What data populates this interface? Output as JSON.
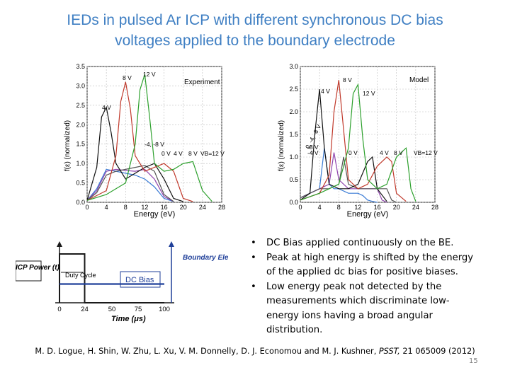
{
  "slide": {
    "title_line1": "IEDs in pulsed Ar ICP with different synchronous DC bias",
    "title_line2": "voltages applied to the boundary electrode",
    "bullets": [
      "DC Bias applied continuously on the BE.",
      "Peak at high energy is shifted by the energy of the applied dc bias for positive biases.",
      "Low energy peak not detected by the measurements which discriminate low-energy ions having a broad angular distribution."
    ],
    "bullet_glyph": "•",
    "citation_authors": "M. D. Logue, H. Shin, W. Zhu, L. Xu, V. M. Donnelly, D. J. Economou and M. J. Kushner,",
    "citation_journal": "PSST,",
    "citation_ref": "21 065009 (2012)",
    "page_number": "15"
  },
  "chart_data": [
    {
      "type": "line",
      "title": "Experiment",
      "xlabel": "Energy (eV)",
      "ylabel": "f(ε) (normalized)",
      "xlim": [
        0,
        28
      ],
      "ylim": [
        0,
        3.5
      ],
      "xticks": [
        0,
        4,
        8,
        12,
        16,
        20,
        24,
        28
      ],
      "yticks": [
        0.0,
        0.5,
        1.0,
        1.5,
        2.0,
        2.5,
        3.0,
        3.5
      ],
      "annotations": [
        "4 V",
        "8 V",
        "12 V",
        "-4, -8 V",
        "0 V",
        "4 V",
        "8 V",
        "VB=12 V"
      ],
      "series": [
        {
          "name": "-8 V",
          "color": "#3a7bd5",
          "x": [
            0,
            2,
            4,
            6,
            8,
            10,
            12,
            14,
            16,
            18
          ],
          "y": [
            0.05,
            0.35,
            0.85,
            0.8,
            0.75,
            0.7,
            0.6,
            0.4,
            0.1,
            0.02
          ]
        },
        {
          "name": "-4 V",
          "color": "#8e44ad",
          "x": [
            0,
            2,
            4,
            6,
            8,
            10,
            12,
            14,
            16,
            18
          ],
          "y": [
            0.05,
            0.3,
            0.8,
            0.85,
            0.82,
            0.8,
            0.85,
            0.6,
            0.15,
            0.02
          ]
        },
        {
          "name": "0 V",
          "color": "#555555",
          "x": [
            0,
            2,
            4,
            6,
            8,
            10,
            12,
            14,
            16,
            18
          ],
          "y": [
            0.05,
            0.25,
            0.7,
            0.8,
            0.85,
            0.9,
            0.95,
            0.8,
            0.2,
            0.02
          ]
        },
        {
          "name": "4 V",
          "color": "#111111",
          "x": [
            0,
            2,
            3,
            4,
            5,
            6,
            8,
            10,
            12,
            14,
            16,
            18,
            20
          ],
          "y": [
            0.05,
            0.9,
            2.2,
            2.45,
            1.8,
            1.0,
            0.6,
            0.75,
            0.9,
            1.0,
            0.6,
            0.1,
            0.02
          ]
        },
        {
          "name": "8 V",
          "color": "#c0392b",
          "x": [
            0,
            4,
            6,
            7,
            8,
            9,
            10,
            12,
            14,
            16,
            18,
            20,
            22
          ],
          "y": [
            0.05,
            0.3,
            1.2,
            2.6,
            3.1,
            2.4,
            1.2,
            0.8,
            0.9,
            1.0,
            0.8,
            0.1,
            0.02
          ]
        },
        {
          "name": "12 V",
          "color": "#2ca02c",
          "x": [
            0,
            4,
            8,
            10,
            11,
            12,
            13,
            14,
            16,
            18,
            20,
            22,
            24,
            26
          ],
          "y": [
            0.05,
            0.2,
            0.5,
            1.5,
            2.9,
            3.3,
            2.2,
            1.0,
            0.8,
            0.85,
            1.0,
            1.05,
            0.3,
            0.02
          ]
        }
      ]
    },
    {
      "type": "line",
      "title": "Model",
      "xlabel": "Energy (eV)",
      "ylabel": "f(ε) (normalized)",
      "xlim": [
        0,
        28
      ],
      "ylim": [
        0,
        3.0
      ],
      "xticks": [
        0,
        4,
        8,
        12,
        16,
        20,
        24,
        28
      ],
      "yticks": [
        0.0,
        0.5,
        1.0,
        1.5,
        2.0,
        2.5,
        3.0
      ],
      "annotations": [
        "8 V",
        "4 V",
        "12 V",
        "0, -4, -8 V",
        "-8 V",
        "-4 V",
        "0 V",
        "4 V",
        "8 V",
        "VB=12 V"
      ],
      "series": [
        {
          "name": "-8 V",
          "color": "#3a7bd5",
          "x": [
            0,
            2,
            4,
            5,
            6,
            7,
            8,
            10,
            12,
            13,
            14,
            15,
            16
          ],
          "y": [
            0.1,
            0.2,
            0.3,
            1.2,
            0.4,
            0.3,
            0.3,
            0.2,
            0.2,
            0.15,
            0.05,
            0.02,
            0.0
          ]
        },
        {
          "name": "-4 V",
          "color": "#8e44ad",
          "x": [
            0,
            2,
            4,
            6,
            7,
            8,
            10,
            12,
            14,
            16,
            17,
            18
          ],
          "y": [
            0.1,
            0.2,
            0.3,
            0.4,
            1.1,
            0.5,
            0.3,
            0.3,
            0.3,
            0.3,
            0.05,
            0.0
          ]
        },
        {
          "name": "0 V",
          "color": "#555555",
          "x": [
            0,
            2,
            4,
            6,
            8,
            9,
            10,
            12,
            14,
            16,
            18,
            19,
            20
          ],
          "y": [
            0.1,
            0.2,
            0.3,
            0.3,
            0.4,
            1.0,
            0.4,
            0.3,
            0.3,
            0.3,
            0.3,
            0.05,
            0.0
          ]
        },
        {
          "name": "4 V",
          "color": "#111111",
          "x": [
            0,
            2,
            3,
            4,
            5,
            6,
            8,
            10,
            12,
            14,
            15,
            16,
            18
          ],
          "y": [
            0.05,
            0.2,
            1.5,
            2.5,
            1.2,
            0.4,
            0.3,
            0.3,
            0.4,
            0.9,
            1.0,
            0.3,
            0.02
          ]
        },
        {
          "name": "8 V",
          "color": "#c0392b",
          "x": [
            0,
            4,
            6,
            7,
            8,
            9,
            10,
            12,
            14,
            16,
            18,
            19,
            20,
            22
          ],
          "y": [
            0.05,
            0.2,
            0.6,
            2.0,
            2.7,
            1.6,
            0.5,
            0.3,
            0.4,
            0.8,
            1.0,
            0.9,
            0.2,
            0.02
          ]
        },
        {
          "name": "12 V",
          "color": "#2ca02c",
          "x": [
            0,
            4,
            8,
            10,
            11,
            12,
            13,
            14,
            16,
            18,
            20,
            22,
            23,
            24
          ],
          "y": [
            0.05,
            0.2,
            0.4,
            1.2,
            2.4,
            2.6,
            1.4,
            0.5,
            0.3,
            0.4,
            1.0,
            1.2,
            0.3,
            0.02
          ]
        }
      ]
    },
    {
      "type": "line",
      "title": "",
      "xlabel": "Time (μs)",
      "ylabel": "ICP Power (t)",
      "xlim": [
        0,
        100
      ],
      "xticks": [
        0,
        24,
        50,
        75,
        100
      ],
      "labels": {
        "icp_power": "ICP Power (t)",
        "duty_cycle": "Duty Cycle",
        "dc_bias": "DC Bias",
        "boundary_electrode": "Boundary Electrode DC Bias (t)"
      },
      "series": [
        {
          "name": "ICP Power",
          "color": "#1a1a1a",
          "x": [
            0,
            0,
            24,
            24,
            100
          ],
          "y": [
            0,
            1,
            1,
            0,
            0
          ]
        },
        {
          "name": "DC Bias",
          "color": "#1f3f99",
          "x": [
            0,
            100
          ],
          "y": [
            0.5,
            0.5
          ]
        }
      ]
    }
  ]
}
